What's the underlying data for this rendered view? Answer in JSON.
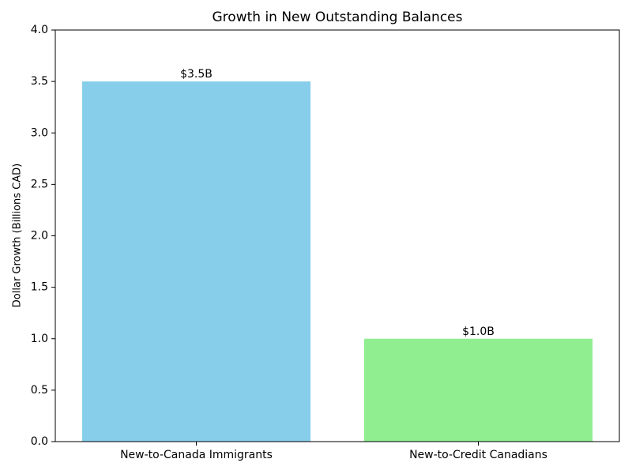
{
  "chart_data": {
    "type": "bar",
    "title": "Growth in New Outstanding Balances",
    "y_label": "Dollar Growth (Billions CAD)",
    "categories": [
      "New-to-Canada Immigrants",
      "New-to-Credit Canadians"
    ],
    "values": [
      3.5,
      1.0
    ],
    "value_labels": [
      "$3.5B",
      "$1.0B"
    ],
    "colors": [
      "#87ceeb",
      "#90ee90"
    ],
    "ylim": [
      0,
      4
    ],
    "yticks": [
      {
        "value": 0,
        "label": "0.0"
      },
      0.5,
      {
        "value": 1,
        "label": "1.0"
      },
      1.5,
      {
        "value": 2,
        "label": "2.0"
      },
      2.5,
      {
        "value": 3,
        "label": "3.0"
      },
      3.5,
      {
        "value": 4,
        "label": "4.0"
      }
    ],
    "grid": false
  }
}
